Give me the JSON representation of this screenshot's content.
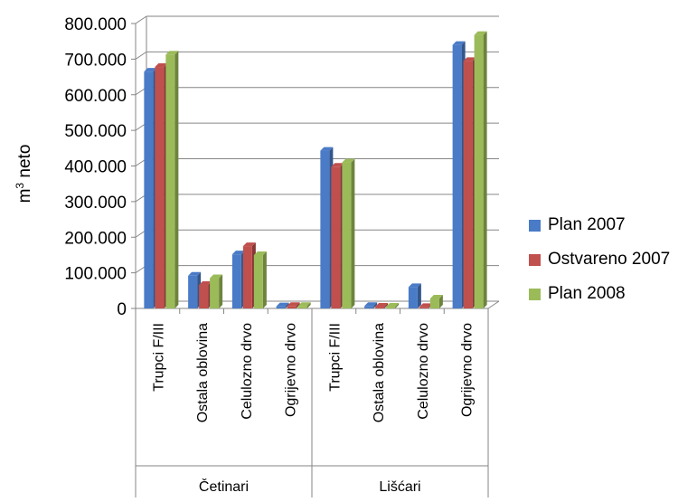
{
  "chart_data": {
    "type": "bar",
    "groups": [
      {
        "label": "Četinari",
        "categories": [
          "Trupci F/III",
          "Ostala oblovina",
          "Celulozno drvo",
          "Ogrijevno drvo"
        ]
      },
      {
        "label": "Lišćari",
        "categories": [
          "Trupci F/III",
          "Ostala oblovina",
          "Celulozno drvo",
          "Ogrijevno drvo"
        ]
      }
    ],
    "series": [
      {
        "name": "Plan 2007",
        "color": "#4a7bc7",
        "values": [
          665000,
          92000,
          152000,
          6000,
          443000,
          7000,
          60000,
          740000
        ]
      },
      {
        "name": "Ostvareno 2007",
        "color": "#c0504d",
        "values": [
          678000,
          66000,
          175000,
          7000,
          398000,
          5000,
          4000,
          695000
        ]
      },
      {
        "name": "Plan 2008",
        "color": "#9bbb59",
        "values": [
          713000,
          85000,
          150000,
          7000,
          410000,
          5000,
          28000,
          768000
        ]
      }
    ],
    "ylabel_base": "m",
    "ylabel_sup": "3",
    "ylabel_rest": " neto",
    "ylim": [
      0,
      800000
    ],
    "yticks": [
      "0",
      "100.000",
      "200.000",
      "300.000",
      "400.000",
      "500.000",
      "600.000",
      "700.000",
      "800.000"
    ],
    "grid": true,
    "legend_position": "right"
  }
}
